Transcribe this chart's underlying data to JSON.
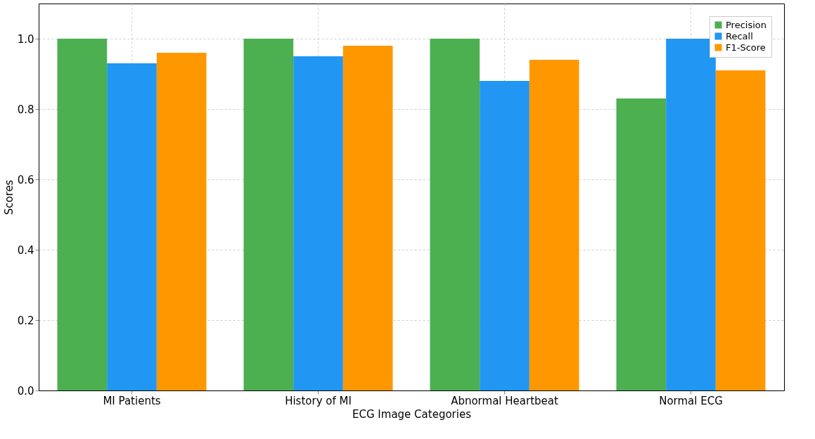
{
  "chart_data": {
    "type": "bar",
    "xlabel": "ECG Image Categories",
    "ylabel": "Scores",
    "categories": [
      "MI Patients",
      "History of MI",
      "Abnormal Heartbeat",
      "Normal ECG"
    ],
    "series": [
      {
        "name": "Precision",
        "color": "#4caf50",
        "values": [
          1.0,
          1.0,
          1.0,
          0.83
        ]
      },
      {
        "name": "Recall",
        "color": "#2196f3",
        "values": [
          0.93,
          0.95,
          0.88,
          1.0
        ]
      },
      {
        "name": "F1-Score",
        "color": "#ff9800",
        "values": [
          0.96,
          0.98,
          0.94,
          0.91
        ]
      }
    ],
    "ylim": [
      0,
      1.1
    ],
    "yticks": [
      {
        "value": 0,
        "label": "0.0"
      },
      {
        "value": 0.2,
        "label": "0.2"
      },
      {
        "value": 0.4,
        "label": "0.4"
      },
      {
        "value": 0.6,
        "label": "0.6"
      },
      {
        "value": 0.8,
        "label": "0.8"
      },
      {
        "value": 1.0,
        "label": "1.0"
      }
    ],
    "grid": true,
    "legend": "top right"
  }
}
